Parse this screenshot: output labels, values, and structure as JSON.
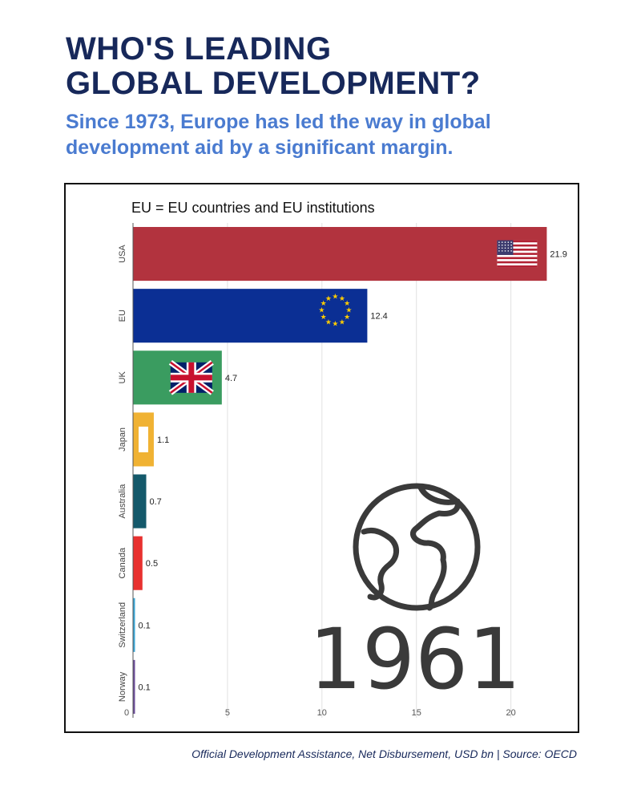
{
  "header": {
    "title_line1": "WHO'S LEADING",
    "title_line2": "GLOBAL DEVELOPMENT?",
    "subtitle_line1": "Since 1973, Europe has led the way in global",
    "subtitle_line2": "development aid by a significant margin."
  },
  "footer": {
    "source": "Official Development Assistance, Net Disbursement, USD bn | Source: OECD"
  },
  "chart_data": {
    "type": "bar",
    "orientation": "horizontal",
    "annotation": "EU = EU countries and EU institutions",
    "year": "1961",
    "categories": [
      "USA",
      "EU",
      "UK",
      "Japan",
      "Australia",
      "Canada",
      "Switzerland",
      "Norway"
    ],
    "values": [
      21.9,
      12.4,
      4.7,
      1.1,
      0.7,
      0.5,
      0.1,
      0.1
    ],
    "value_labels": [
      "21.9",
      "12.4",
      "4.7",
      "1.1",
      "0.7",
      "0.5",
      "0.1",
      "0.1"
    ],
    "colors": [
      "#b2333e",
      "#0b2f94",
      "#3a9c60",
      "#f0b233",
      "#14596b",
      "#e8312f",
      "#3aa6d6",
      "#6b4c9a"
    ],
    "flags": [
      "us-flag",
      "eu-flag",
      "uk-flag",
      "",
      "",
      "",
      "",
      ""
    ],
    "xlim": [
      0,
      22.9
    ],
    "xticks": [
      0,
      5,
      10,
      15,
      20
    ],
    "xtick_labels": [
      "0",
      "5",
      "10",
      "15",
      "20"
    ],
    "grid": true,
    "xlabel": "",
    "ylabel": ""
  }
}
